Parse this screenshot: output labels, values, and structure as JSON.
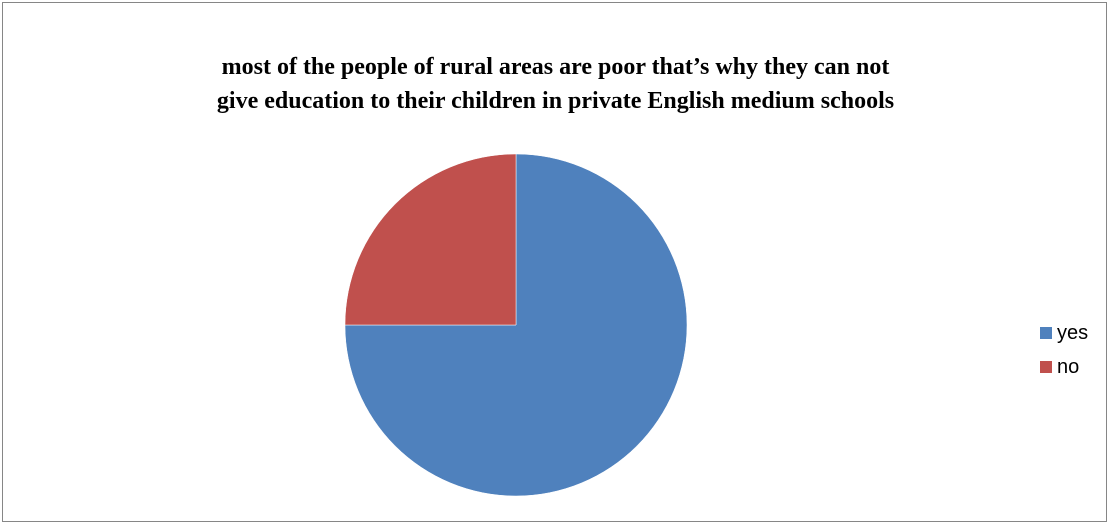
{
  "chart_data": {
    "type": "pie",
    "title": "most of the people of rural areas are poor that’s why they can not give education to their children in private English medium schools",
    "title_lines": [
      "most of the people of rural areas are poor that’s why they can not",
      "give education to their children in private English medium schools"
    ],
    "categories": [
      "yes",
      "no"
    ],
    "values": [
      75,
      25
    ],
    "colors": [
      "#4F81BD",
      "#C0504D"
    ],
    "legend": {
      "placement": "right",
      "entries": [
        "yes",
        "no"
      ]
    }
  }
}
